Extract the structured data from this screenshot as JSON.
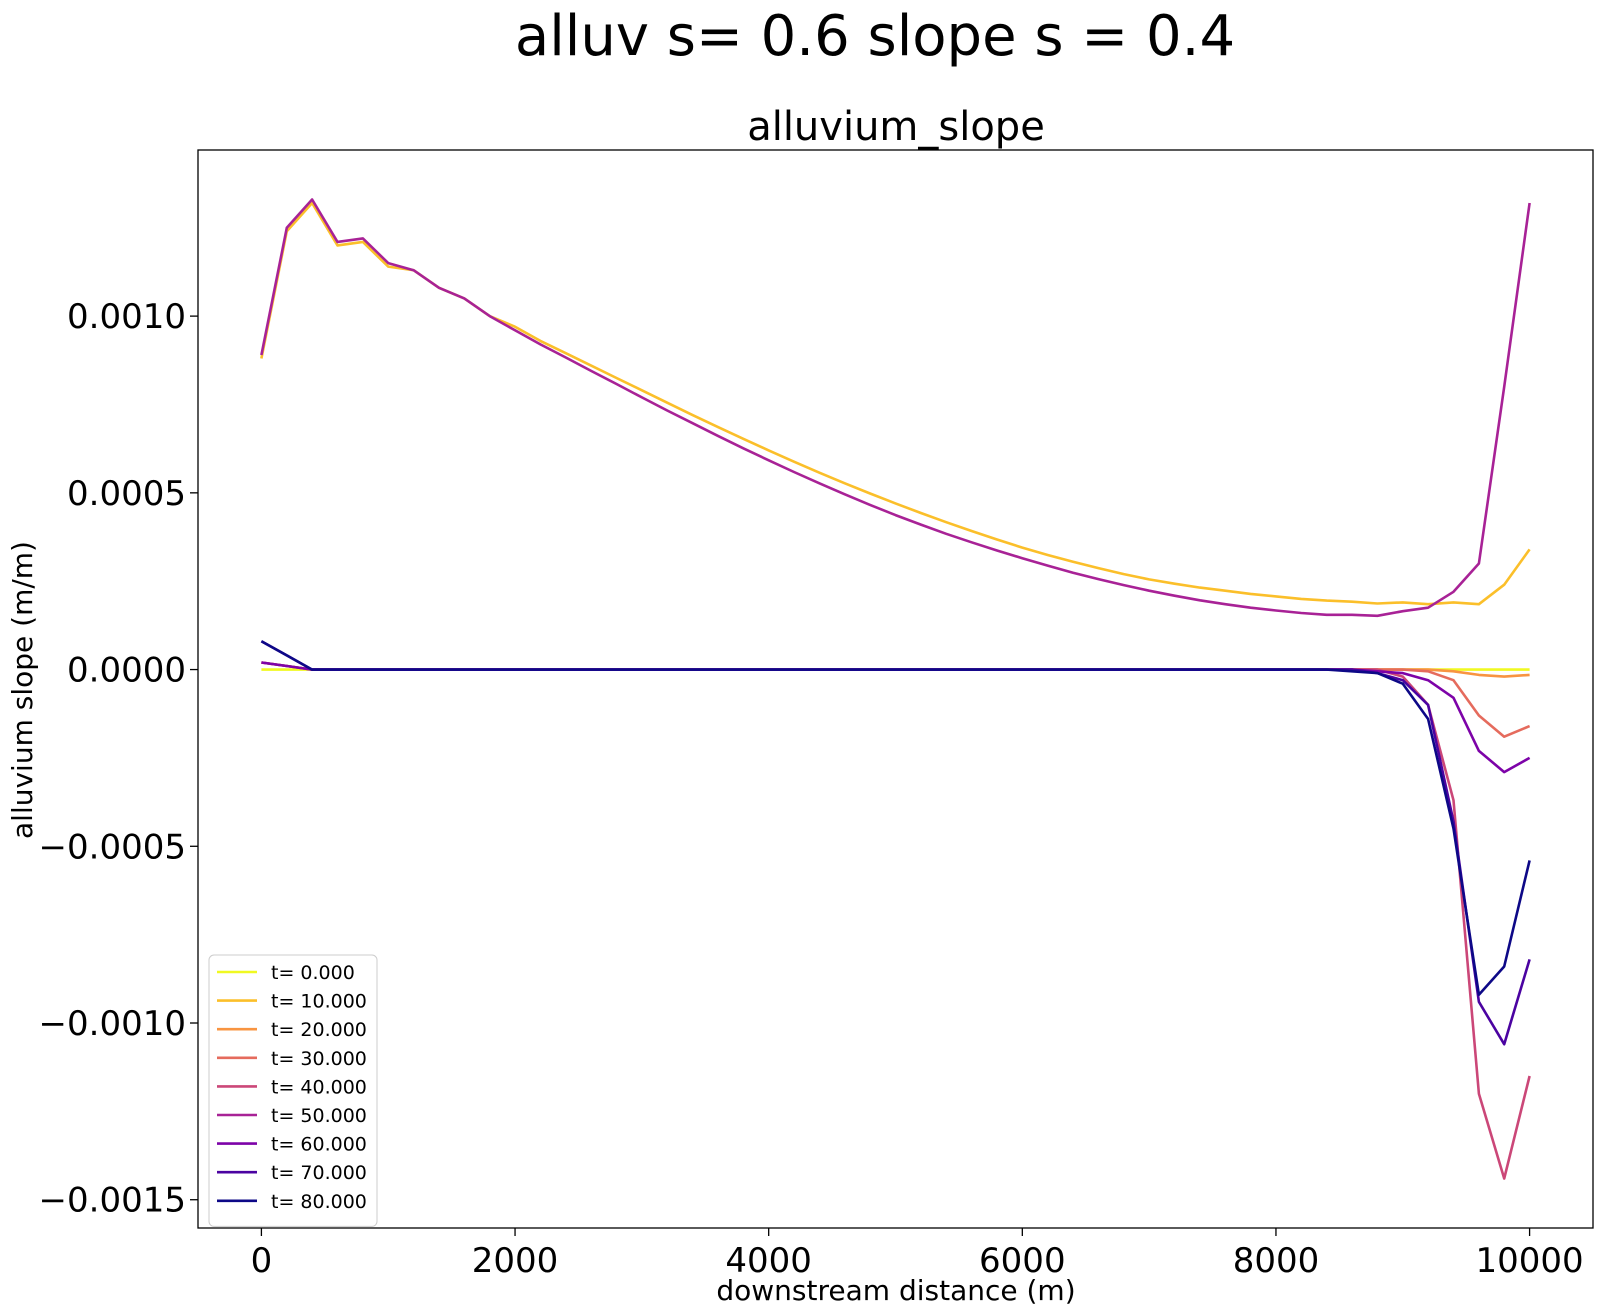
{
  "chart_data": {
    "type": "line",
    "suptitle": "alluv s= 0.6     slope s = 0.4",
    "title": "alluvium_slope",
    "xlabel": "downstream distance (m)",
    "ylabel": "alluvium slope (m/m)",
    "xlim": [
      -500,
      10500
    ],
    "ylim": [
      -0.00158,
      0.00147
    ],
    "xticks": [
      0,
      2000,
      4000,
      6000,
      8000,
      10000
    ],
    "xtick_labels": [
      "0",
      "2000",
      "4000",
      "6000",
      "8000",
      "10000"
    ],
    "yticks": [
      0.001,
      0.0005,
      0.0,
      -0.0005,
      -0.001,
      -0.0015
    ],
    "ytick_labels": [
      "0.0010",
      "0.0005",
      "0.0000",
      "−0.0005",
      "−0.0010",
      "−0.0015"
    ],
    "grid": false,
    "legend_position": "lower-left",
    "x": [
      0,
      200,
      400,
      600,
      800,
      1000,
      1200,
      1400,
      1600,
      1800,
      2000,
      2200,
      2400,
      2600,
      2800,
      3000,
      3200,
      3400,
      3600,
      3800,
      4000,
      4200,
      4400,
      4600,
      4800,
      5000,
      5200,
      5400,
      5600,
      5800,
      6000,
      6200,
      6400,
      6600,
      6800,
      7000,
      7200,
      7400,
      7600,
      7800,
      8000,
      8200,
      8400,
      8600,
      8800,
      9000,
      9200,
      9400,
      9600,
      9800,
      10000
    ],
    "series": [
      {
        "name": "t= 0.000",
        "color": "#f0f921",
        "values": [
          0.0,
          0.0,
          0.0,
          0.0,
          0.0,
          0.0,
          0.0,
          0.0,
          0.0,
          0.0,
          0.0,
          0.0,
          0.0,
          0.0,
          0.0,
          0.0,
          0.0,
          0.0,
          0.0,
          0.0,
          0.0,
          0.0,
          0.0,
          0.0,
          0.0,
          0.0,
          0.0,
          0.0,
          0.0,
          0.0,
          0.0,
          0.0,
          0.0,
          0.0,
          0.0,
          0.0,
          0.0,
          0.0,
          0.0,
          0.0,
          0.0,
          0.0,
          0.0,
          0.0,
          0.0,
          0.0,
          0.0,
          0.0,
          0.0,
          0.0,
          0.0
        ]
      },
      {
        "name": "t= 10.000",
        "color": "#fbbf2a",
        "values": [
          0.00088,
          0.00124,
          0.00132,
          0.0012,
          0.00121,
          0.00114,
          0.00113,
          0.00108,
          0.00105,
          0.001,
          0.00097,
          0.00093,
          0.000895,
          0.00086,
          0.000825,
          0.00079,
          0.000755,
          0.00072,
          0.000686,
          0.000653,
          0.00062,
          0.000588,
          0.000557,
          0.000527,
          0.000498,
          0.00047,
          0.000443,
          0.000417,
          0.000392,
          0.000368,
          0.000345,
          0.000324,
          0.000305,
          0.000287,
          0.00027,
          0.000255,
          0.000243,
          0.000232,
          0.000223,
          0.000214,
          0.000207,
          0.0002,
          0.000195,
          0.000192,
          0.000187,
          0.00019,
          0.000185,
          0.00019,
          0.000185,
          0.00024,
          0.00034
        ]
      },
      {
        "name": "t= 20.000",
        "color": "#f89441",
        "values": [
          2e-05,
          1e-05,
          0.0,
          0.0,
          0.0,
          0.0,
          0.0,
          0.0,
          0.0,
          0.0,
          0.0,
          0.0,
          0.0,
          0.0,
          0.0,
          0.0,
          0.0,
          0.0,
          0.0,
          0.0,
          0.0,
          0.0,
          0.0,
          0.0,
          0.0,
          0.0,
          0.0,
          0.0,
          0.0,
          0.0,
          0.0,
          0.0,
          0.0,
          0.0,
          0.0,
          0.0,
          0.0,
          0.0,
          0.0,
          0.0,
          0.0,
          0.0,
          0.0,
          0.0,
          0.0,
          0.0,
          0.0,
          -5e-06,
          -1.5e-05,
          -2e-05,
          -1.5e-05
        ]
      },
      {
        "name": "t= 30.000",
        "color": "#e56b5d",
        "values": [
          2e-05,
          1e-05,
          0.0,
          0.0,
          0.0,
          0.0,
          0.0,
          0.0,
          0.0,
          0.0,
          0.0,
          0.0,
          0.0,
          0.0,
          0.0,
          0.0,
          0.0,
          0.0,
          0.0,
          0.0,
          0.0,
          0.0,
          0.0,
          0.0,
          0.0,
          0.0,
          0.0,
          0.0,
          0.0,
          0.0,
          0.0,
          0.0,
          0.0,
          0.0,
          0.0,
          0.0,
          0.0,
          0.0,
          0.0,
          0.0,
          0.0,
          0.0,
          0.0,
          0.0,
          0.0,
          0.0,
          -5e-06,
          -3e-05,
          -0.00013,
          -0.00019,
          -0.00016
        ]
      },
      {
        "name": "t= 40.000",
        "color": "#cb4778",
        "values": [
          2e-05,
          1e-05,
          0.0,
          0.0,
          0.0,
          0.0,
          0.0,
          0.0,
          0.0,
          0.0,
          0.0,
          0.0,
          0.0,
          0.0,
          0.0,
          0.0,
          0.0,
          0.0,
          0.0,
          0.0,
          0.0,
          0.0,
          0.0,
          0.0,
          0.0,
          0.0,
          0.0,
          0.0,
          0.0,
          0.0,
          0.0,
          0.0,
          0.0,
          0.0,
          0.0,
          0.0,
          0.0,
          0.0,
          0.0,
          0.0,
          0.0,
          0.0,
          0.0,
          0.0,
          0.0,
          -2e-05,
          -0.0001,
          -0.00037,
          -0.0012,
          -0.00144,
          -0.00115
        ]
      },
      {
        "name": "t= 50.000",
        "color": "#a82296",
        "values": [
          0.00089,
          0.00125,
          0.00133,
          0.00121,
          0.00122,
          0.00115,
          0.00113,
          0.00108,
          0.00105,
          0.001,
          0.00096,
          0.00092,
          0.000883,
          0.000845,
          0.000808,
          0.00077,
          0.000733,
          0.000697,
          0.000661,
          0.000626,
          0.000592,
          0.000559,
          0.000527,
          0.000496,
          0.000466,
          0.000437,
          0.00041,
          0.000384,
          0.00036,
          0.000337,
          0.000315,
          0.000294,
          0.000274,
          0.000256,
          0.000239,
          0.000223,
          0.000209,
          0.000196,
          0.000185,
          0.000175,
          0.000167,
          0.00016,
          0.000155,
          0.000155,
          0.000152,
          0.000165,
          0.000175,
          0.00022,
          0.0003,
          0.0008,
          0.00132
        ]
      },
      {
        "name": "t= 60.000",
        "color": "#7d03a8",
        "values": [
          2e-05,
          1e-05,
          0.0,
          0.0,
          0.0,
          0.0,
          0.0,
          0.0,
          0.0,
          0.0,
          0.0,
          0.0,
          0.0,
          0.0,
          0.0,
          0.0,
          0.0,
          0.0,
          0.0,
          0.0,
          0.0,
          0.0,
          0.0,
          0.0,
          0.0,
          0.0,
          0.0,
          0.0,
          0.0,
          0.0,
          0.0,
          0.0,
          0.0,
          0.0,
          0.0,
          0.0,
          0.0,
          0.0,
          0.0,
          0.0,
          0.0,
          0.0,
          0.0,
          0.0,
          -5e-06,
          -1e-05,
          -3e-05,
          -8e-05,
          -0.00023,
          -0.00029,
          -0.00025
        ]
      },
      {
        "name": "t= 70.000",
        "color": "#4b03a1",
        "values": [
          8e-05,
          4e-05,
          0.0,
          0.0,
          0.0,
          0.0,
          0.0,
          0.0,
          0.0,
          0.0,
          0.0,
          0.0,
          0.0,
          0.0,
          0.0,
          0.0,
          0.0,
          0.0,
          0.0,
          0.0,
          0.0,
          0.0,
          0.0,
          0.0,
          0.0,
          0.0,
          0.0,
          0.0,
          0.0,
          0.0,
          0.0,
          0.0,
          0.0,
          0.0,
          0.0,
          0.0,
          0.0,
          0.0,
          0.0,
          0.0,
          0.0,
          0.0,
          0.0,
          0.0,
          -1e-05,
          -3e-05,
          -0.0001,
          -0.00043,
          -0.00094,
          -0.00106,
          -0.00082
        ]
      },
      {
        "name": "t= 80.000",
        "color": "#0d0887",
        "values": [
          8e-05,
          4e-05,
          0.0,
          0.0,
          0.0,
          0.0,
          0.0,
          0.0,
          0.0,
          0.0,
          0.0,
          0.0,
          0.0,
          0.0,
          0.0,
          0.0,
          0.0,
          0.0,
          0.0,
          0.0,
          0.0,
          0.0,
          0.0,
          0.0,
          0.0,
          0.0,
          0.0,
          0.0,
          0.0,
          0.0,
          0.0,
          0.0,
          0.0,
          0.0,
          0.0,
          0.0,
          0.0,
          0.0,
          0.0,
          0.0,
          0.0,
          0.0,
          0.0,
          -5e-06,
          -1e-05,
          -4e-05,
          -0.00014,
          -0.00045,
          -0.00092,
          -0.00084,
          -0.00054
        ]
      }
    ]
  }
}
